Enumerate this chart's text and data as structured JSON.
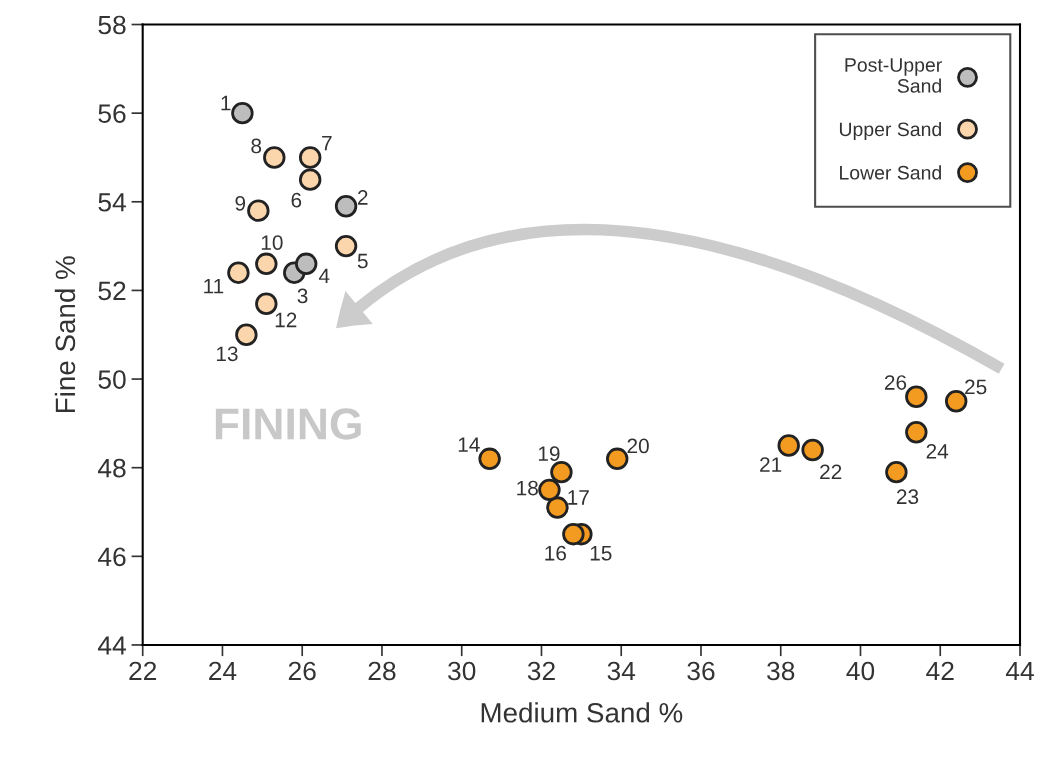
{
  "chart_data": {
    "type": "scatter",
    "xlabel": "Medium Sand %",
    "ylabel": "Fine Sand %",
    "xlim": [
      22,
      44
    ],
    "xticks": [
      22,
      24,
      26,
      28,
      30,
      32,
      34,
      36,
      38,
      40,
      42,
      44
    ],
    "ylim": [
      44,
      58
    ],
    "yticks": [
      44,
      46,
      48,
      50,
      52,
      54,
      56,
      58
    ],
    "grid": false,
    "legend": "top right",
    "marker": "circle",
    "series": [
      {
        "name": "Post-Upper\nSand",
        "color": "#bdbdbd",
        "x": [
          24.5,
          27.1,
          25.8,
          26.1
        ],
        "values": [
          56.0,
          53.9,
          52.4,
          52.6
        ]
      },
      {
        "name": "Upper Sand",
        "color": "#fbd5ac",
        "x": [
          27.1,
          26.2,
          26.2,
          25.3,
          24.9,
          25.1,
          24.4,
          25.1,
          24.6
        ],
        "values": [
          53.0,
          54.5,
          55.0,
          55.0,
          53.8,
          52.6,
          52.4,
          51.7,
          51.0
        ]
      },
      {
        "name": "Lower Sand",
        "color": "#f39a21",
        "x": [
          30.7,
          33.0,
          32.8,
          32.4,
          32.2,
          32.5,
          33.9,
          38.2,
          38.8,
          40.9,
          41.4,
          42.4,
          41.4
        ],
        "values": [
          48.2,
          46.5,
          46.5,
          47.1,
          47.5,
          47.9,
          48.2,
          48.5,
          48.4,
          47.9,
          48.8,
          49.5,
          49.6
        ]
      }
    ],
    "annotations": [
      {
        "text": "1",
        "x": 24.5,
        "y": 56.0
      },
      {
        "text": "2",
        "x": 27.1,
        "y": 53.9
      },
      {
        "text": "3",
        "x": 25.8,
        "y": 52.4
      },
      {
        "text": "4",
        "x": 26.1,
        "y": 52.6
      },
      {
        "text": "5",
        "x": 27.1,
        "y": 53.0
      },
      {
        "text": "6",
        "x": 26.2,
        "y": 54.5
      },
      {
        "text": "7",
        "x": 26.2,
        "y": 55.0
      },
      {
        "text": "8",
        "x": 25.3,
        "y": 55.0
      },
      {
        "text": "9",
        "x": 24.9,
        "y": 53.8
      },
      {
        "text": "10",
        "x": 25.1,
        "y": 52.6
      },
      {
        "text": "11",
        "x": 24.4,
        "y": 52.4
      },
      {
        "text": "12",
        "x": 25.1,
        "y": 51.7
      },
      {
        "text": "13",
        "x": 24.6,
        "y": 51.0
      },
      {
        "text": "14",
        "x": 30.7,
        "y": 48.2
      },
      {
        "text": "15",
        "x": 33.0,
        "y": 46.5
      },
      {
        "text": "16",
        "x": 32.8,
        "y": 46.5
      },
      {
        "text": "17",
        "x": 32.4,
        "y": 47.1
      },
      {
        "text": "18",
        "x": 32.2,
        "y": 47.5
      },
      {
        "text": "19",
        "x": 32.5,
        "y": 47.9
      },
      {
        "text": "20",
        "x": 33.9,
        "y": 48.2
      },
      {
        "text": "21",
        "x": 38.2,
        "y": 48.5
      },
      {
        "text": "22",
        "x": 38.8,
        "y": 48.4
      },
      {
        "text": "23",
        "x": 40.9,
        "y": 47.9
      },
      {
        "text": "24",
        "x": 41.4,
        "y": 48.8
      },
      {
        "text": "25",
        "x": 42.4,
        "y": 49.5
      },
      {
        "text": "26",
        "x": 41.4,
        "y": 49.6
      },
      "FINING"
    ]
  }
}
